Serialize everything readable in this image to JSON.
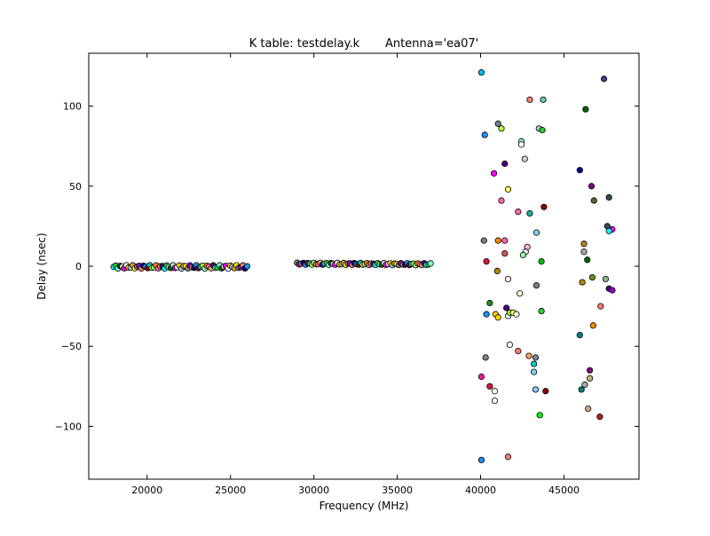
{
  "chart_data": {
    "type": "scatter",
    "title": "K table: testdelay.k       Antenna='ea07'",
    "xlabel": "Frequency (MHz)",
    "ylabel": "Delay (nsec)",
    "xlim": [
      16500,
      49500
    ],
    "ylim": [
      -133,
      133
    ],
    "x_ticks": [
      20000,
      25000,
      30000,
      35000,
      40000,
      45000
    ],
    "x_tick_labels": [
      "20000",
      "25000",
      "30000",
      "35000",
      "40000",
      "45000"
    ],
    "y_ticks": [
      -100,
      -50,
      0,
      50,
      100
    ],
    "y_tick_labels": [
      "−100",
      "−50",
      "0",
      "50",
      "100"
    ],
    "grid": false,
    "legend": "none",
    "marker": "circle",
    "marker_edge_color": "#000000",
    "bands": [
      {
        "x_start": 18000,
        "x_end": 26000,
        "n_points": 64,
        "y_center": -0.4,
        "y_jitter": 1.0,
        "y_trend": 0.0
      },
      {
        "x_start": 29000,
        "x_end": 37000,
        "n_points": 64,
        "y_center": 1.6,
        "y_jitter": 0.6,
        "y_trend": -0.4
      }
    ],
    "points": [
      [
        40050,
        121,
        "#00bfff"
      ],
      [
        40250,
        82,
        "#1e90ff"
      ],
      [
        40800,
        58,
        "#ff00ff"
      ],
      [
        41050,
        89,
        "#708090"
      ],
      [
        41250,
        86,
        "#adff2f"
      ],
      [
        41450,
        64,
        "#4b0082"
      ],
      [
        41250,
        41,
        "#ff69b4"
      ],
      [
        41650,
        48,
        "#ffff66"
      ],
      [
        40200,
        16,
        "#808080"
      ],
      [
        40350,
        3,
        "#dc143c"
      ],
      [
        41050,
        16,
        "#ff8c00"
      ],
      [
        41450,
        16,
        "#ff69b4"
      ],
      [
        41450,
        8,
        "#cd5c5c"
      ],
      [
        41000,
        -3,
        "#b8860b"
      ],
      [
        41650,
        -8,
        "#ffffff"
      ],
      [
        40550,
        -23,
        "#228b22"
      ],
      [
        40350,
        -30,
        "#1e90ff"
      ],
      [
        40900,
        -30,
        "#ffd700"
      ],
      [
        41050,
        -32,
        "#ffd700"
      ],
      [
        41550,
        -26,
        "#4b0082"
      ],
      [
        41650,
        -31,
        "#ffffff"
      ],
      [
        41750,
        -29,
        "#adff2f"
      ],
      [
        41950,
        -29,
        "#ffff66"
      ],
      [
        42150,
        -30,
        "#ffffff"
      ],
      [
        42350,
        -17,
        "#ffffe0"
      ],
      [
        41750,
        -49,
        "#ffffff"
      ],
      [
        42250,
        -53,
        "#fa8072"
      ],
      [
        40300,
        -57,
        "#808080"
      ],
      [
        40050,
        -69,
        "#ff1493"
      ],
      [
        40550,
        -75,
        "#dc143c"
      ],
      [
        40850,
        -78,
        "#ffffff"
      ],
      [
        40850,
        -84,
        "#ffffff"
      ],
      [
        40050,
        -121,
        "#1e90ff"
      ],
      [
        41650,
        -119,
        "#f08080"
      ],
      [
        42950,
        104,
        "#fa8072"
      ],
      [
        43750,
        104,
        "#66cdaa"
      ],
      [
        42450,
        78,
        "#7fffd4"
      ],
      [
        42450,
        76,
        "#ffffff"
      ],
      [
        43500,
        86,
        "#b0c4de"
      ],
      [
        43700,
        85,
        "#32cd32"
      ],
      [
        42650,
        67,
        "#d3d3d3"
      ],
      [
        42250,
        34,
        "#ff69b4"
      ],
      [
        42950,
        33,
        "#20b2aa"
      ],
      [
        43800,
        37,
        "#8b0000"
      ],
      [
        43350,
        21,
        "#87cefa"
      ],
      [
        42800,
        12,
        "#ffb6c1"
      ],
      [
        42700,
        9,
        "#e6e6fa"
      ],
      [
        42550,
        7,
        "#98fb98"
      ],
      [
        43650,
        3,
        "#00c000"
      ],
      [
        43350,
        -12,
        "#808080"
      ],
      [
        43650,
        -28,
        "#32cd32"
      ],
      [
        42900,
        -56,
        "#f4a460"
      ],
      [
        43300,
        -57,
        "#778899"
      ],
      [
        43200,
        -61,
        "#00ced1"
      ],
      [
        43200,
        -66,
        "#87cefa"
      ],
      [
        43300,
        -77,
        "#87cefa"
      ],
      [
        43900,
        -78,
        "#8b0000"
      ],
      [
        43550,
        -93,
        "#00ff00"
      ],
      [
        47400,
        117,
        "#483d8b"
      ],
      [
        46300,
        98,
        "#006400"
      ],
      [
        45950,
        60,
        "#00008b"
      ],
      [
        46650,
        50,
        "#8b008b"
      ],
      [
        47700,
        43,
        "#2f4f4f"
      ],
      [
        46800,
        41,
        "#556b2f"
      ],
      [
        47600,
        25,
        "#2f4f4f"
      ],
      [
        47900,
        23,
        "#ff00ff"
      ],
      [
        47700,
        22,
        "#00ffff"
      ],
      [
        46200,
        14,
        "#b8860b"
      ],
      [
        46200,
        9,
        "#a9a9a9"
      ],
      [
        46400,
        4,
        "#006400"
      ],
      [
        46700,
        -7,
        "#6b8e23"
      ],
      [
        47500,
        -8,
        "#8fbc8f"
      ],
      [
        46100,
        -10,
        "#b8860b"
      ],
      [
        47700,
        -14,
        "#4b0082"
      ],
      [
        47900,
        -15,
        "#9400d3"
      ],
      [
        47200,
        -25,
        "#fa8072"
      ],
      [
        46750,
        -37,
        "#ff8c00"
      ],
      [
        45950,
        -43,
        "#008080"
      ],
      [
        46550,
        -65,
        "#800080"
      ],
      [
        46550,
        -70,
        "#bdb76b"
      ],
      [
        46250,
        -74,
        "#a9a9a9"
      ],
      [
        46050,
        -77,
        "#008080"
      ],
      [
        46450,
        -89,
        "#cdaa7d"
      ],
      [
        47150,
        -94,
        "#b22222"
      ]
    ]
  }
}
